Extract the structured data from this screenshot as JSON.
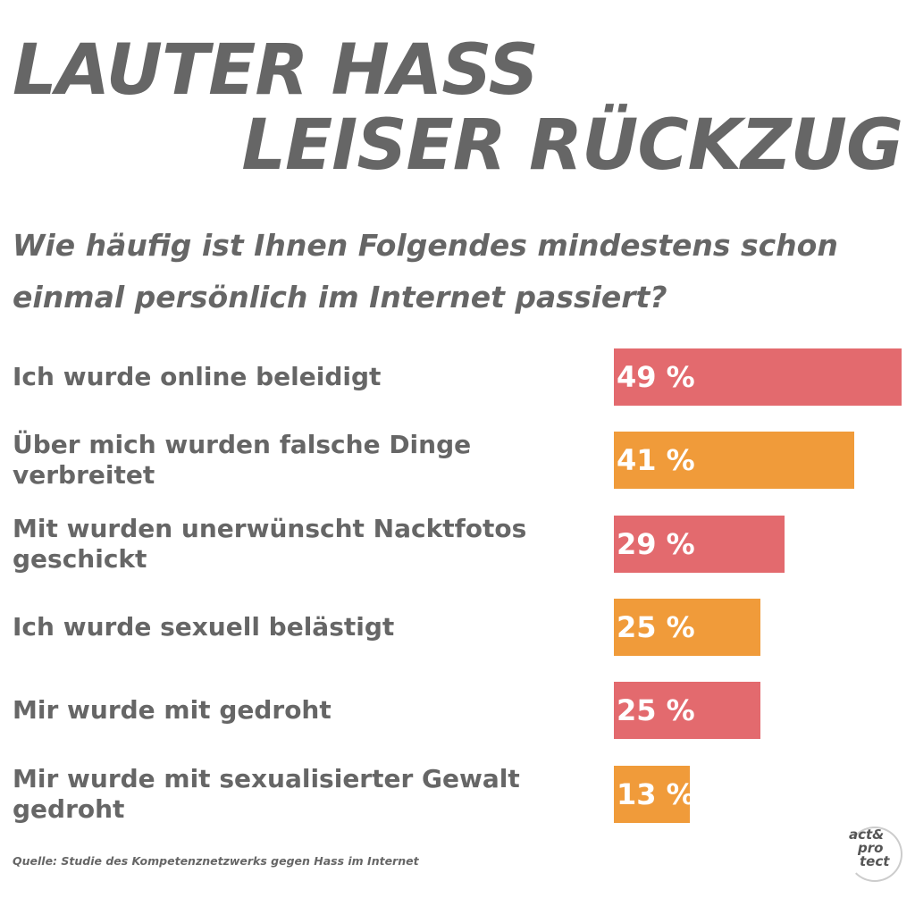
{
  "title": {
    "line1": "LAUTER HASS",
    "line2": "LEISER RÜCKZUG"
  },
  "question": "Wie häufig ist Ihnen Folgendes mindestens schon einmal persönlich im Internet passiert?",
  "chart_data": {
    "type": "bar",
    "orientation": "horizontal",
    "categories": [
      "Ich wurde online beleidigt",
      "Über mich wurden falsche Dinge verbreitet",
      "Mit wurden unerwünscht Nacktfotos geschickt",
      "Ich wurde sexuell belästigt",
      "Mir wurde mit gedroht",
      "Mir wurde mit sexualisierter Gewalt gedroht"
    ],
    "values": [
      49,
      41,
      29,
      25,
      25,
      13
    ],
    "value_labels": [
      "49 %",
      "41 %",
      "29 %",
      "25 %",
      "25 %",
      "13 %"
    ],
    "unit": "%",
    "xlim": [
      0,
      49
    ],
    "bar_colors": [
      "#e36a6e",
      "#f09b3a",
      "#e36a6e",
      "#f09b3a",
      "#e36a6e",
      "#f09b3a"
    ],
    "grid": false,
    "legend": "none"
  },
  "source": "Quelle: Studie des Kompetenznetzwerks gegen Hass im Internet",
  "logo": {
    "line1": "act&",
    "line2": "pro",
    "line3": "tect",
    "mark": "®"
  }
}
